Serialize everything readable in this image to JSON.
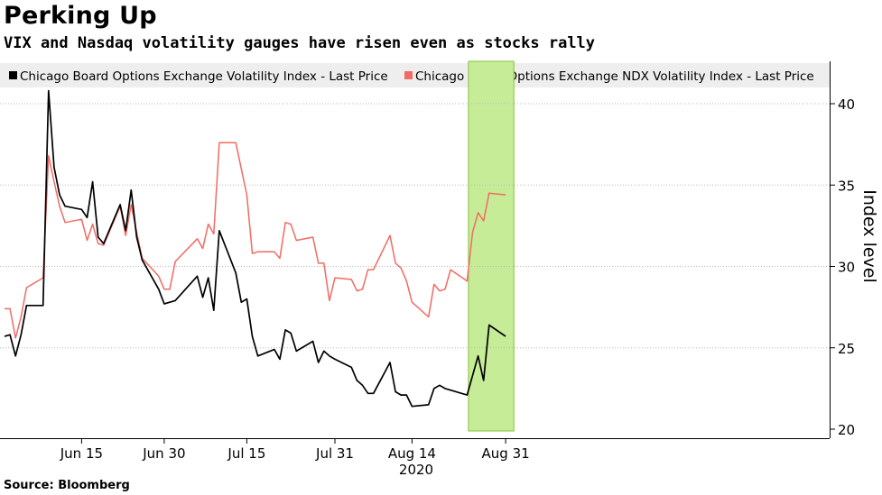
{
  "title": "Perking Up",
  "subtitle": "VIX and Nasdaq volatility gauges have risen even as stocks rally",
  "source": "Source: Bloomberg",
  "colors": {
    "vix": "#000000",
    "ndx": "#f26a63",
    "highlight": "#c7ec97",
    "highlight_border": "#86c33a",
    "legend_bg": "#eeeeee"
  },
  "chart_data": {
    "type": "line",
    "title": "Perking Up",
    "subtitle": "VIX and Nasdaq volatility gauges have risen even as stocks rally",
    "xlabel": "2020",
    "ylabel": "Index level",
    "ylim": [
      20,
      42.5
    ],
    "yticks": [
      20,
      25,
      30,
      35,
      40
    ],
    "xticks": [
      "Jun 15",
      "Jun 30",
      "Jul 15",
      "Jul 31",
      "Aug 14",
      "Aug 31"
    ],
    "legend_position": "top",
    "grid": "horizontal dotted",
    "highlight_range": [
      "Aug 24",
      "Sep 1"
    ],
    "series": [
      {
        "name": "Chicago Board Options Exchange Volatility Index - Last Price",
        "color": "#000000",
        "points": [
          [
            "Jun 1",
            25.7
          ],
          [
            "Jun 2",
            25.8
          ],
          [
            "Jun 3",
            24.5
          ],
          [
            "Jun 4",
            25.8
          ],
          [
            "Jun 5",
            27.6
          ],
          [
            "Jun 8",
            27.6
          ],
          [
            "Jun 9",
            40.8
          ],
          [
            "Jun 10",
            36.1
          ],
          [
            "Jun 11",
            34.4
          ],
          [
            "Jun 12",
            33.7
          ],
          [
            "Jun 15",
            33.5
          ],
          [
            "Jun 16",
            33.0
          ],
          [
            "Jun 17",
            35.2
          ],
          [
            "Jun 18",
            31.8
          ],
          [
            "Jun 19",
            31.4
          ],
          [
            "Jun 22",
            33.8
          ],
          [
            "Jun 23",
            32.2
          ],
          [
            "Jun 24",
            34.7
          ],
          [
            "Jun 25",
            31.8
          ],
          [
            "Jun 26",
            30.4
          ],
          [
            "Jun 29",
            28.6
          ],
          [
            "Jun 30",
            27.7
          ],
          [
            "Jul 1",
            27.8
          ],
          [
            "Jul 2",
            27.9
          ],
          [
            "Jul 6",
            29.4
          ],
          [
            "Jul 7",
            28.1
          ],
          [
            "Jul 8",
            29.3
          ],
          [
            "Jul 9",
            27.3
          ],
          [
            "Jul 10",
            32.2
          ],
          [
            "Jul 13",
            29.6
          ],
          [
            "Jul 14",
            27.8
          ],
          [
            "Jul 15",
            28.0
          ],
          [
            "Jul 16",
            25.7
          ],
          [
            "Jul 17",
            24.5
          ],
          [
            "Jul 20",
            24.9
          ],
          [
            "Jul 21",
            24.3
          ],
          [
            "Jul 22",
            26.1
          ],
          [
            "Jul 23",
            25.9
          ],
          [
            "Jul 24",
            24.8
          ],
          [
            "Jul 27",
            25.4
          ],
          [
            "Jul 28",
            24.1
          ],
          [
            "Jul 29",
            24.8
          ],
          [
            "Jul 30",
            24.5
          ],
          [
            "Jul 31",
            24.3
          ],
          [
            "Aug 3",
            23.8
          ],
          [
            "Aug 4",
            23.0
          ],
          [
            "Aug 5",
            22.7
          ],
          [
            "Aug 6",
            22.2
          ],
          [
            "Aug 7",
            22.2
          ],
          [
            "Aug 10",
            24.1
          ],
          [
            "Aug 11",
            22.3
          ],
          [
            "Aug 12",
            22.1
          ],
          [
            "Aug 13",
            22.1
          ],
          [
            "Aug 14",
            21.4
          ],
          [
            "Aug 17",
            21.5
          ],
          [
            "Aug 18",
            22.5
          ],
          [
            "Aug 19",
            22.7
          ],
          [
            "Aug 20",
            22.5
          ],
          [
            "Aug 21",
            22.4
          ],
          [
            "Aug 24",
            22.1
          ],
          [
            "Aug 26",
            24.5
          ],
          [
            "Aug 27",
            23.0
          ],
          [
            "Aug 28",
            26.4
          ],
          [
            "Aug 31",
            25.7
          ]
        ]
      },
      {
        "name": "Chicago Board Options Exchange NDX Volatility Index - Last Price",
        "color": "#f26a63",
        "points": [
          [
            "Jun 1",
            27.4
          ],
          [
            "Jun 2",
            27.4
          ],
          [
            "Jun 3",
            25.6
          ],
          [
            "Jun 4",
            26.9
          ],
          [
            "Jun 5",
            28.7
          ],
          [
            "Jun 8",
            29.3
          ],
          [
            "Jun 9",
            36.8
          ],
          [
            "Jun 10",
            35.2
          ],
          [
            "Jun 11",
            33.7
          ],
          [
            "Jun 12",
            32.7
          ],
          [
            "Jun 15",
            32.9
          ],
          [
            "Jun 16",
            31.6
          ],
          [
            "Jun 17",
            32.6
          ],
          [
            "Jun 18",
            31.4
          ],
          [
            "Jun 19",
            31.3
          ],
          [
            "Jun 22",
            33.7
          ],
          [
            "Jun 23",
            31.9
          ],
          [
            "Jun 24",
            33.8
          ],
          [
            "Jun 25",
            32.1
          ],
          [
            "Jun 26",
            30.5
          ],
          [
            "Jun 29",
            29.4
          ],
          [
            "Jun 30",
            28.6
          ],
          [
            "Jul 1",
            28.6
          ],
          [
            "Jul 2",
            30.3
          ],
          [
            "Jul 6",
            31.7
          ],
          [
            "Jul 7",
            31.1
          ],
          [
            "Jul 8",
            32.6
          ],
          [
            "Jul 9",
            32.0
          ],
          [
            "Jul 10",
            37.6
          ],
          [
            "Jul 13",
            37.6
          ],
          [
            "Jul 14",
            36.0
          ],
          [
            "Jul 15",
            34.4
          ],
          [
            "Jul 16",
            30.8
          ],
          [
            "Jul 17",
            30.9
          ],
          [
            "Jul 20",
            30.9
          ],
          [
            "Jul 21",
            30.5
          ],
          [
            "Jul 22",
            32.7
          ],
          [
            "Jul 23",
            32.6
          ],
          [
            "Jul 24",
            31.6
          ],
          [
            "Jul 27",
            31.8
          ],
          [
            "Jul 28",
            30.2
          ],
          [
            "Jul 29",
            30.2
          ],
          [
            "Jul 30",
            27.9
          ],
          [
            "Jul 31",
            29.3
          ],
          [
            "Aug 3",
            29.2
          ],
          [
            "Aug 4",
            28.5
          ],
          [
            "Aug 5",
            28.6
          ],
          [
            "Aug 6",
            29.8
          ],
          [
            "Aug 7",
            29.8
          ],
          [
            "Aug 10",
            31.9
          ],
          [
            "Aug 11",
            30.2
          ],
          [
            "Aug 12",
            29.9
          ],
          [
            "Aug 13",
            29.1
          ],
          [
            "Aug 14",
            27.8
          ],
          [
            "Aug 17",
            26.9
          ],
          [
            "Aug 18",
            28.9
          ],
          [
            "Aug 19",
            28.5
          ],
          [
            "Aug 20",
            28.6
          ],
          [
            "Aug 21",
            29.8
          ],
          [
            "Aug 24",
            29.1
          ],
          [
            "Aug 25",
            32.1
          ],
          [
            "Aug 26",
            33.3
          ],
          [
            "Aug 27",
            32.8
          ],
          [
            "Aug 28",
            34.5
          ],
          [
            "Aug 31",
            34.4
          ]
        ]
      }
    ]
  }
}
